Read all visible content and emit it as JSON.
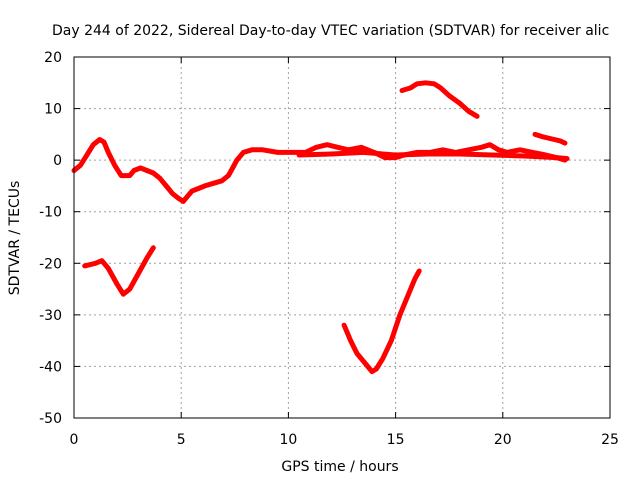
{
  "chart_data": {
    "type": "line",
    "title": "Day 244 of 2022, Sidereal Day-to-day VTEC variation (SDTVAR) for receiver alic",
    "xlabel": "GPS time / hours",
    "ylabel": "SDTVAR / TECUs",
    "xlim": [
      0,
      25
    ],
    "ylim": [
      -50,
      20
    ],
    "xticks": [
      0,
      5,
      10,
      15,
      20,
      25
    ],
    "yticks": [
      -50,
      -40,
      -30,
      -20,
      -10,
      0,
      10,
      20
    ],
    "xtick_labels": [
      "0",
      "5",
      "10",
      "15",
      "20",
      "25"
    ],
    "ytick_labels": [
      "-50",
      "-40",
      "-30",
      "-20",
      "-10",
      "0",
      "10",
      "20"
    ],
    "grid": true,
    "legend": "none",
    "color": "#ff0000",
    "series": [
      {
        "name": "main-trace",
        "x": [
          0,
          0.3,
          0.6,
          0.9,
          1.2,
          1.4,
          1.6,
          1.9,
          2.2,
          2.6,
          2.8,
          3.1,
          3.4,
          3.7,
          4.0,
          4.3,
          4.6,
          4.9,
          5.1,
          5.3,
          5.5,
          5.8,
          6.1,
          6.5,
          6.9,
          7.2,
          7.4,
          7.6,
          7.9,
          8.3,
          8.8,
          9.5,
          10.2,
          10.8,
          11.3,
          11.8,
          12.3,
          12.8,
          13.4,
          14.0,
          14.5,
          15.0,
          15.4,
          16.0,
          16.6,
          17.2,
          17.8,
          18.4,
          19.0,
          19.4,
          19.8,
          20.2,
          20.8,
          21.4,
          22.0,
          22.5,
          22.9
        ],
        "y": [
          -2,
          -1,
          1,
          3,
          4,
          3.5,
          1.5,
          -1,
          -3,
          -3,
          -2,
          -1.5,
          -2,
          -2.5,
          -3.5,
          -5,
          -6.5,
          -7.5,
          -8,
          -7,
          -6,
          -5.5,
          -5,
          -4.5,
          -4,
          -3,
          -1.5,
          0,
          1.5,
          2,
          2,
          1.5,
          1.5,
          1.5,
          2.5,
          3,
          2.5,
          2,
          2.5,
          1.5,
          0.5,
          0.5,
          1,
          1.5,
          1.5,
          2,
          1.5,
          2,
          2.5,
          3,
          2,
          1.5,
          2,
          1.5,
          1,
          0.5,
          0
        ]
      },
      {
        "name": "secondary-trace",
        "x": [
          10.5,
          12,
          13.5,
          15,
          16.5,
          18,
          19.5,
          21,
          22.5,
          23
        ],
        "y": [
          1,
          1.2,
          1.5,
          1,
          1.2,
          1.2,
          1,
          0.8,
          0.5,
          0.3
        ]
      },
      {
        "name": "early-negative-segment",
        "x": [
          0.5,
          1.0,
          1.3,
          1.6,
          2.0,
          2.3,
          2.6,
          3.0,
          3.4,
          3.7
        ],
        "y": [
          -20.5,
          -20,
          -19.5,
          -21,
          -24,
          -26,
          -25,
          -22,
          -19,
          -17
        ]
      },
      {
        "name": "midday-dip-segment",
        "x": [
          12.6,
          12.9,
          13.2,
          13.6,
          13.9,
          14.1,
          14.4,
          14.8,
          15.2,
          15.6,
          15.9,
          16.1
        ],
        "y": [
          -32,
          -35,
          -37.5,
          -39.5,
          -41,
          -40.5,
          -38.5,
          -35,
          -30,
          -26,
          -23,
          -21.5
        ]
      },
      {
        "name": "upper-arc-segment",
        "x": [
          15.3,
          15.7,
          16.0,
          16.4,
          16.8,
          17.1,
          17.5,
          18.0,
          18.4,
          18.8
        ],
        "y": [
          13.5,
          14,
          14.8,
          15,
          14.8,
          14,
          12.5,
          11,
          9.5,
          8.5
        ]
      },
      {
        "name": "late-short-segment",
        "x": [
          21.5,
          21.8,
          22.1,
          22.4,
          22.7,
          22.9
        ],
        "y": [
          5,
          4.6,
          4.3,
          4,
          3.7,
          3.3
        ]
      }
    ]
  }
}
